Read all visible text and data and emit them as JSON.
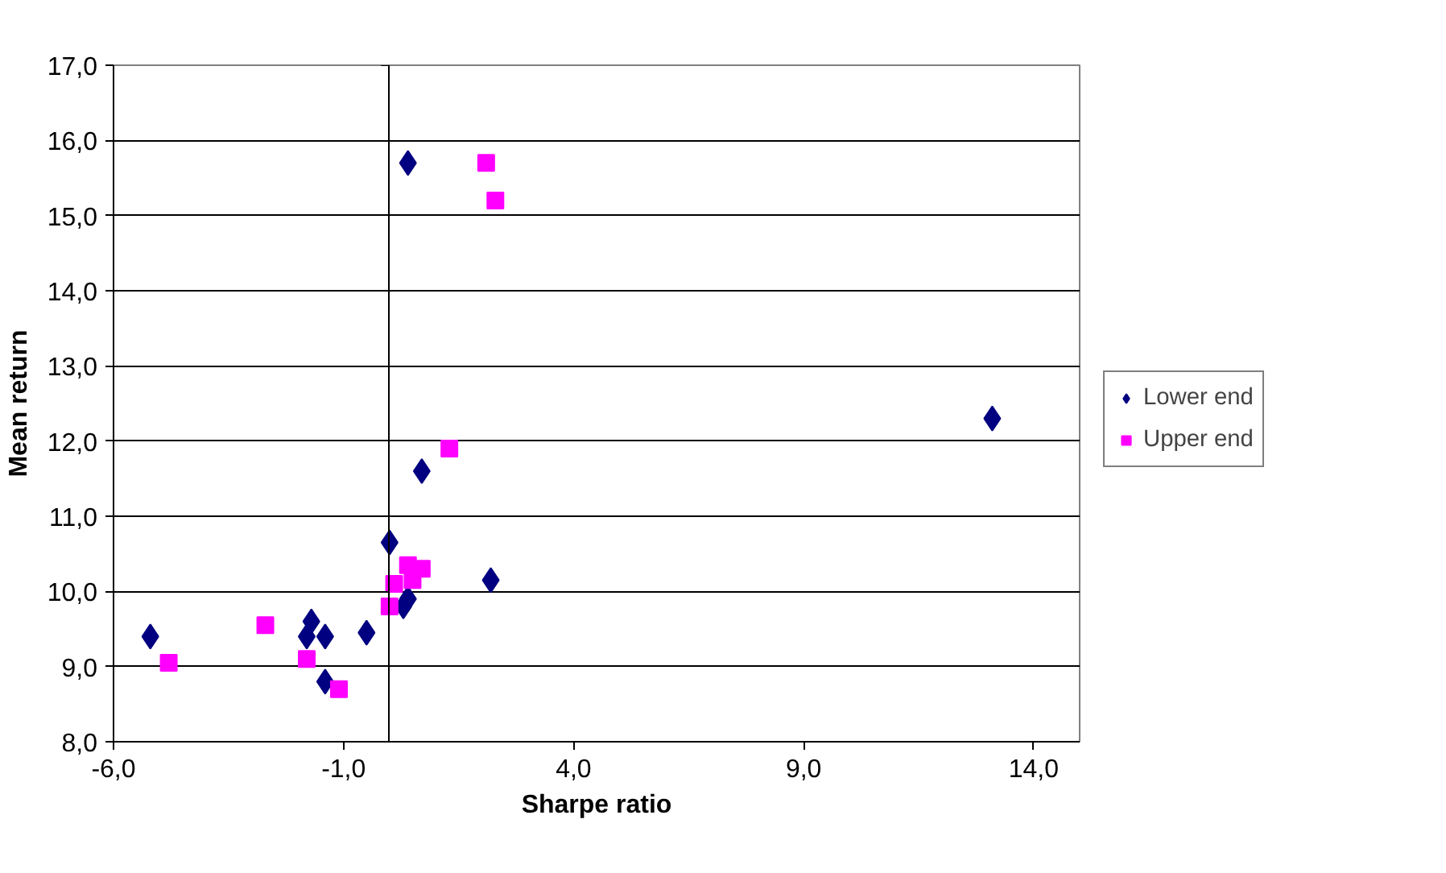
{
  "chart_data": {
    "type": "scatter",
    "xlabel": "Sharpe ratio",
    "ylabel": "Mean return",
    "xlim": [
      -6,
      15
    ],
    "ylim": [
      8,
      17
    ],
    "xticks": [
      {
        "value": -6,
        "label": "-6,0"
      },
      {
        "value": -1,
        "label": "-1,0"
      },
      {
        "value": 4,
        "label": "4,0"
      },
      {
        "value": 9,
        "label": "9,0"
      },
      {
        "value": 14,
        "label": "14,0"
      }
    ],
    "yticks": [
      {
        "value": 8,
        "label": "8,0"
      },
      {
        "value": 9,
        "label": "9,0"
      },
      {
        "value": 10,
        "label": "10,0"
      },
      {
        "value": 11,
        "label": "11,0"
      },
      {
        "value": 12,
        "label": "12,0"
      },
      {
        "value": 13,
        "label": "13,0"
      },
      {
        "value": 14,
        "label": "14,0"
      },
      {
        "value": 15,
        "label": "15,0"
      },
      {
        "value": 16,
        "label": "16,0"
      },
      {
        "value": 17,
        "label": "17,0"
      }
    ],
    "grid": "y",
    "legend": "right",
    "series": [
      {
        "name": "Lower end",
        "color": "#000080",
        "marker": "diamond",
        "x": [
          -5.2,
          0.4,
          13.1,
          0.7,
          0.0,
          2.2,
          0.4,
          0.3,
          -0.5,
          -1.4,
          -1.7,
          -1.8,
          -1.4
        ],
        "values": [
          9.4,
          15.7,
          12.3,
          11.6,
          10.65,
          10.15,
          9.9,
          9.8,
          9.45,
          9.4,
          9.6,
          9.4,
          8.8
        ]
      },
      {
        "name": "Upper end",
        "color": "#ff00ff",
        "marker": "square",
        "x": [
          2.1,
          2.3,
          1.3,
          0.4,
          0.7,
          0.5,
          0.1,
          0.0,
          -2.7,
          -4.8,
          -1.8,
          -1.1
        ],
        "values": [
          15.7,
          15.2,
          11.9,
          10.35,
          10.3,
          10.15,
          10.1,
          9.8,
          9.55,
          9.05,
          9.1,
          8.7
        ]
      }
    ]
  }
}
